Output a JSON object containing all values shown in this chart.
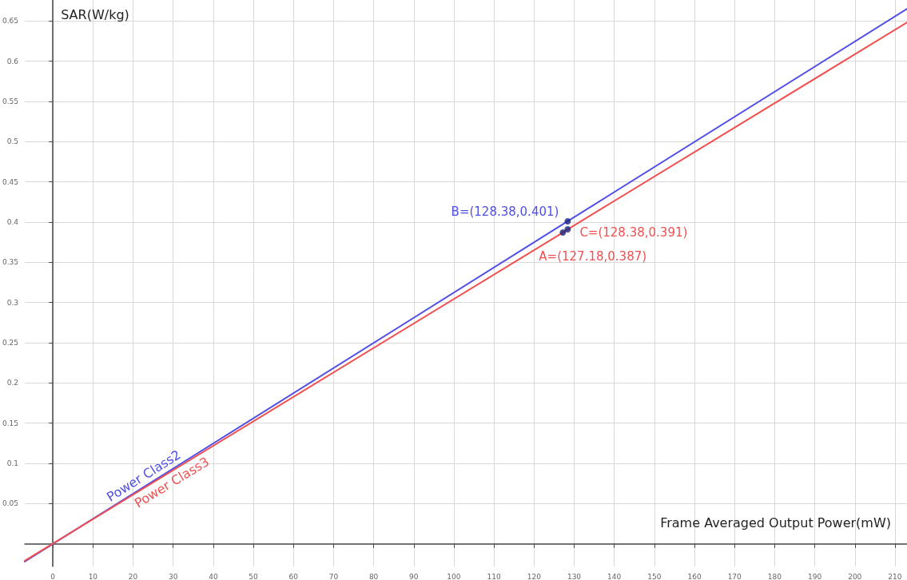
{
  "chart_data": {
    "type": "line",
    "xlabel": "Frame Averaged Output Power(mW)",
    "ylabel": "SAR(W/kg)",
    "xlim": [
      -7,
      213
    ],
    "ylim": [
      -0.028,
      0.676
    ],
    "xticks": [
      0,
      10,
      20,
      30,
      40,
      50,
      60,
      70,
      80,
      90,
      100,
      110,
      120,
      130,
      140,
      150,
      160,
      170,
      180,
      190,
      200,
      210
    ],
    "yticks": [
      0.05,
      0.1,
      0.15,
      0.2,
      0.25,
      0.3,
      0.35,
      0.4,
      0.45,
      0.5,
      0.55,
      0.6,
      0.65
    ],
    "grid": true,
    "legend": false,
    "marker": "none",
    "line_style": "solid",
    "series": [
      {
        "name": "Power Class2",
        "color": "#4f4fe6",
        "x": [
          -7,
          128.38,
          213
        ],
        "values": [
          -0.022,
          0.401,
          0.665
        ],
        "value_labels": [
          null,
          "B=(128.38,0.401)",
          null
        ]
      },
      {
        "name": "Power Class3",
        "color": "#f05050",
        "x": [
          -7,
          127.18,
          128.38,
          213
        ],
        "values": [
          -0.021,
          0.387,
          0.391,
          0.648
        ],
        "value_labels": [
          null,
          "A=(127.18,0.387)",
          "C=(128.38,0.391)",
          null
        ]
      },
      {
        "type": "scatter",
        "marker": "circle",
        "color": "#1a237e",
        "x": [
          127.18,
          128.38,
          128.38
        ],
        "values": [
          0.387,
          0.401,
          0.391
        ]
      }
    ]
  }
}
